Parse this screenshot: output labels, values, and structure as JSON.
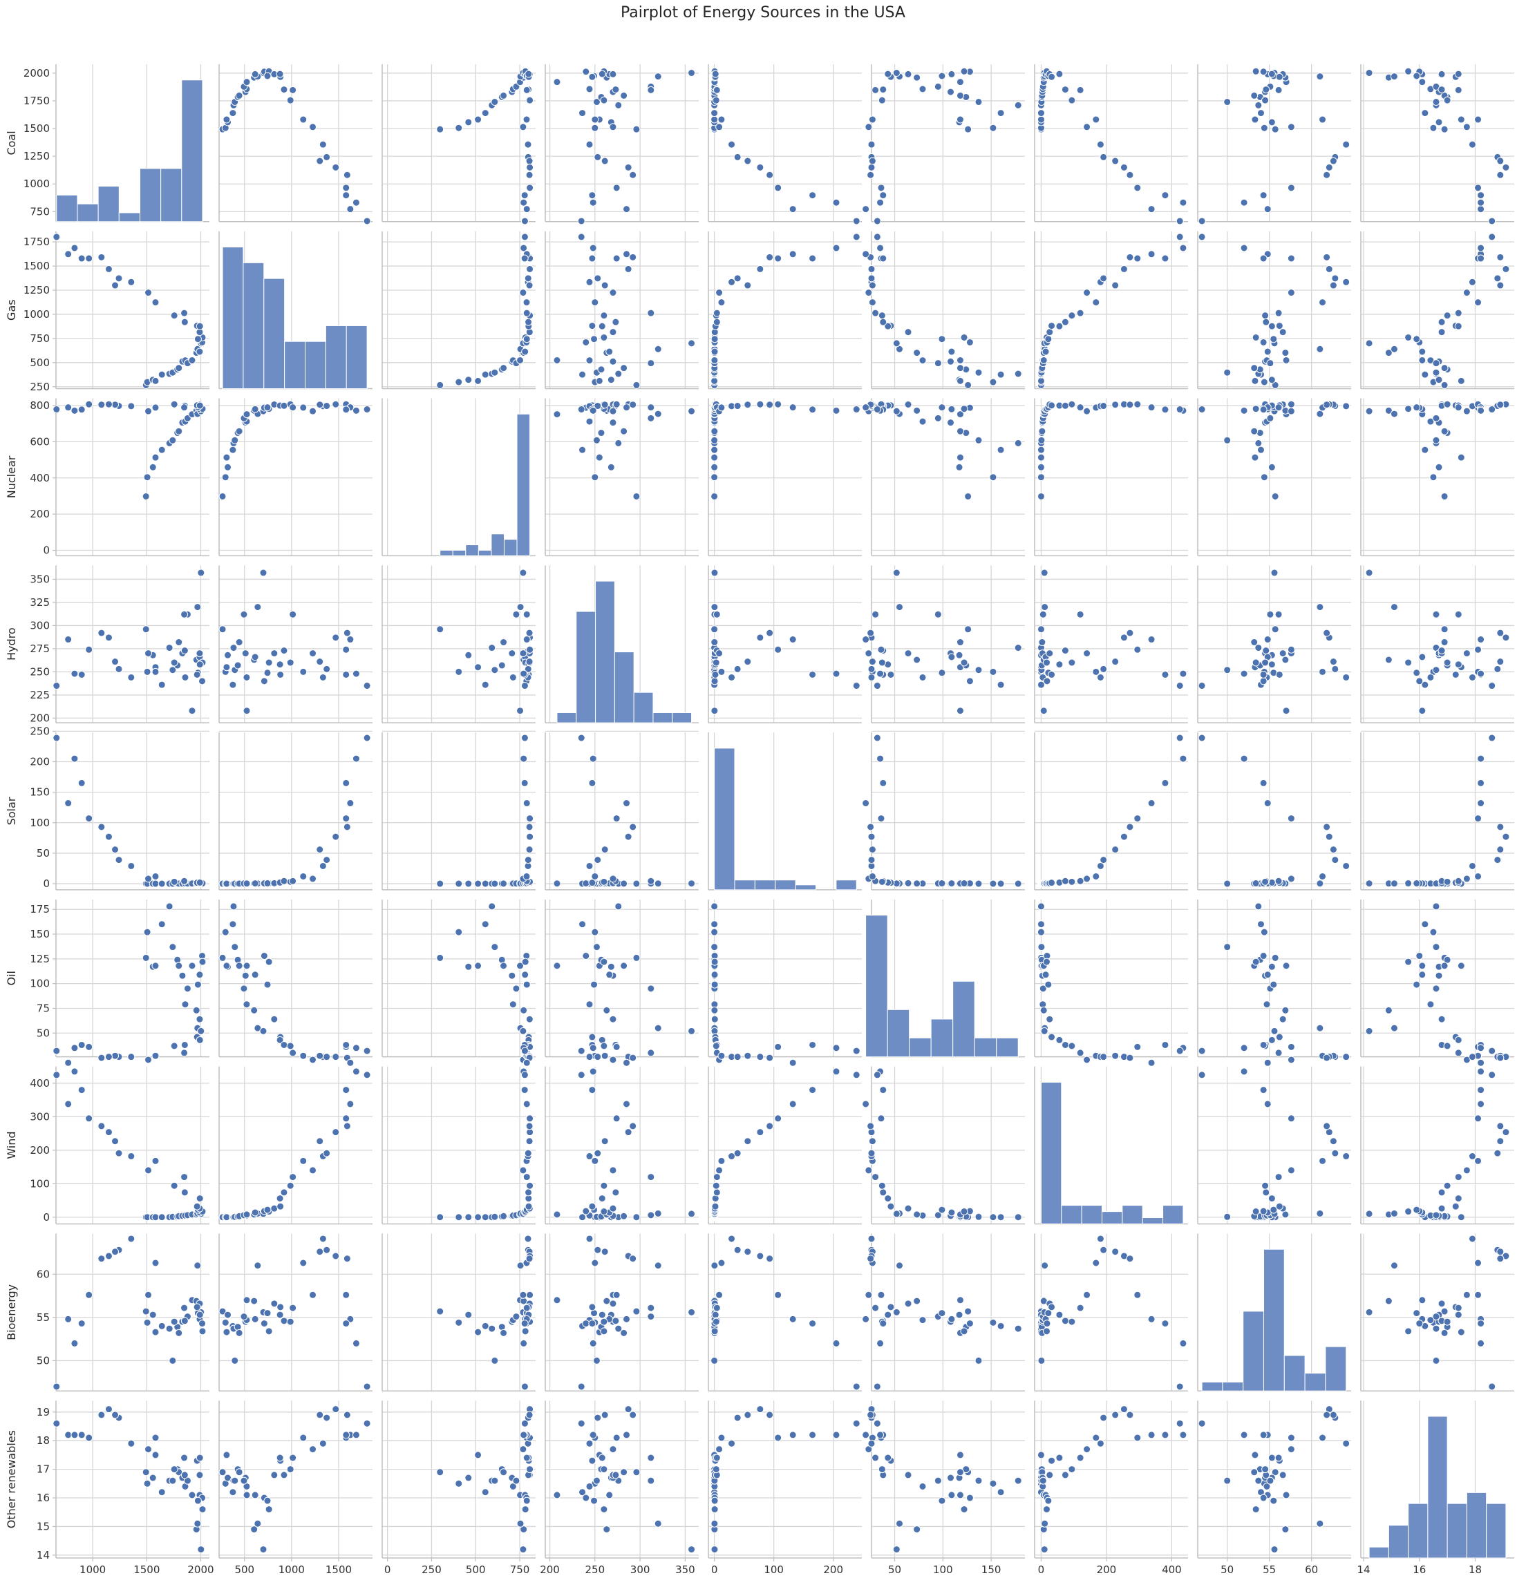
{
  "title": "Pairplot of Energy Sources in the USA",
  "chart_data": {
    "type": "scatter",
    "title": "Pairplot of Energy Sources in the USA",
    "variables": [
      "Coal",
      "Gas",
      "Nuclear",
      "Hydro",
      "Solar",
      "Oil",
      "Wind",
      "Bioenergy",
      "Other renewables"
    ],
    "ranges": {
      "Coal": [
        660,
        2080
      ],
      "Gas": [
        230,
        1860
      ],
      "Nuclear": [
        -30,
        840
      ],
      "Hydro": [
        195,
        365
      ],
      "Solar": [
        -10,
        248
      ],
      "Oil": [
        26,
        185
      ],
      "Wind": [
        -20,
        450
      ],
      "Bioenergy": [
        46.5,
        64.7
      ],
      "Other renewables": [
        13.9,
        19.4
      ]
    },
    "ticks": {
      "Coal": [
        1000,
        1500,
        2000
      ],
      "Gas": [
        500,
        1000,
        1500
      ],
      "Nuclear": [
        0,
        250,
        500,
        750
      ],
      "Hydro": [
        200,
        250,
        300,
        350
      ],
      "Solar": [
        0,
        100,
        200
      ],
      "Oil": [
        50,
        100,
        150
      ],
      "Wind": [
        0,
        200,
        400
      ],
      "Bioenergy": [
        50,
        55,
        60
      ],
      "Other renewables": [
        14,
        16,
        18
      ]
    },
    "row_ticks": {
      "Coal": [
        "750",
        "1000",
        "1250",
        "1500",
        "1750",
        "2000"
      ],
      "Gas": [
        "250",
        "500",
        "750",
        "1000",
        "1250",
        "1500",
        "1750"
      ],
      "Nuclear": [
        "0",
        "200",
        "400",
        "600",
        "800"
      ],
      "Hydro": [
        "200",
        "225",
        "250",
        "275",
        "300",
        "325",
        "350"
      ],
      "Solar": [
        "0",
        "50",
        "100",
        "150",
        "200",
        "250"
      ],
      "Oil": [
        "50",
        "75",
        "100",
        "125",
        "150",
        "175"
      ],
      "Wind": [
        "0",
        "100",
        "200",
        "300",
        "400"
      ],
      "Bioenergy": [
        "50",
        "55",
        "60"
      ],
      "Other renewables": [
        "14",
        "15",
        "16",
        "17",
        "18",
        "19"
      ]
    },
    "records": [
      {
        "Coal": 1493,
        "Gas": 267,
        "Nuclear": 298,
        "Hydro": 296,
        "Solar": 0.0,
        "Oil": 126,
        "Wind": 0.0,
        "Bioenergy": 55.7,
        "Other renewables": 16.9
      },
      {
        "Coal": 1505,
        "Gas": 298,
        "Nuclear": 404,
        "Hydro": 250,
        "Solar": 0.0,
        "Oil": 152,
        "Wind": 0.0,
        "Bioenergy": 54.4,
        "Other renewables": 16.5
      },
      {
        "Coal": 1557,
        "Gas": 322,
        "Nuclear": 459,
        "Hydro": 268,
        "Solar": 0.0,
        "Oil": 117,
        "Wind": 0.0,
        "Bioenergy": 55.3,
        "Other renewables": 16.7
      },
      {
        "Coal": 1581,
        "Gas": 310,
        "Nuclear": 513,
        "Hydro": 255,
        "Solar": 0.0,
        "Oil": 118,
        "Wind": 0.0,
        "Bioenergy": 53.3,
        "Other renewables": 17.5
      },
      {
        "Coal": 1640,
        "Gas": 376,
        "Nuclear": 555,
        "Hydro": 236,
        "Solar": 0.0,
        "Oil": 160,
        "Wind": 0.0,
        "Bioenergy": 54.0,
        "Other renewables": 16.2
      },
      {
        "Coal": 1710,
        "Gas": 384,
        "Nuclear": 592,
        "Hydro": 276,
        "Solar": 0.0,
        "Oil": 178,
        "Wind": 0.0,
        "Bioenergy": 53.7,
        "Other renewables": 16.6
      },
      {
        "Coal": 1740,
        "Gas": 397,
        "Nuclear": 608,
        "Hydro": 252,
        "Solar": 0.0,
        "Oil": 137,
        "Wind": 1.0,
        "Bioenergy": 50.0,
        "Other renewables": 16.6
      },
      {
        "Coal": 1784,
        "Gas": 429,
        "Nuclear": 649,
        "Hydro": 257,
        "Solar": 0.2,
        "Oil": 124,
        "Wind": 2.0,
        "Bioenergy": 53.9,
        "Other renewables": 17.0
      },
      {
        "Coal": 1797,
        "Gas": 444,
        "Nuclear": 658,
        "Hydro": 282,
        "Solar": 0.2,
        "Oil": 118,
        "Wind": 3.0,
        "Bioenergy": 53.2,
        "Other renewables": 16.9
      },
      {
        "Coal": 1830,
        "Gas": 511,
        "Nuclear": 706,
        "Hydro": 270,
        "Solar": 0.2,
        "Oil": 108,
        "Wind": 4.0,
        "Bioenergy": 54.5,
        "Other renewables": 16.7
      },
      {
        "Coal": 1856,
        "Gas": 523,
        "Nuclear": 712,
        "Hydro": 244,
        "Solar": 0.3,
        "Oil": 79,
        "Wind": 5.0,
        "Bioenergy": 54.7,
        "Other renewables": 16.4
      },
      {
        "Coal": 1878,
        "Gas": 494,
        "Nuclear": 730,
        "Hydro": 312,
        "Solar": 0.3,
        "Oil": 95,
        "Wind": 6.0,
        "Bioenergy": 55.1,
        "Other renewables": 16.6
      },
      {
        "Coal": 1920,
        "Gas": 524,
        "Nuclear": 752,
        "Hydro": 208,
        "Solar": 0.3,
        "Oil": 118,
        "Wind": 8.0,
        "Bioenergy": 57.0,
        "Other renewables": 16.1
      },
      {
        "Coal": 1960,
        "Gas": 602,
        "Nuclear": 772,
        "Hydro": 263,
        "Solar": 0.3,
        "Oil": 73,
        "Wind": 8.0,
        "Bioenergy": 56.9,
        "Other renewables": 14.9
      },
      {
        "Coal": 1970,
        "Gas": 640,
        "Nuclear": 754,
        "Hydro": 320,
        "Solar": 0.3,
        "Oil": 55,
        "Wind": 11.0,
        "Bioenergy": 61.0,
        "Other renewables": 15.1
      },
      {
        "Coal": 2002,
        "Gas": 700,
        "Nuclear": 769,
        "Hydro": 357,
        "Solar": 0.4,
        "Oil": 52,
        "Wind": 10.0,
        "Bioenergy": 55.6,
        "Other renewables": 14.2
      },
      {
        "Coal": 1990,
        "Gas": 613,
        "Nuclear": 780,
        "Hydro": 266,
        "Solar": 0.5,
        "Oil": 109,
        "Wind": 14.0,
        "Bioenergy": 54.8,
        "Other renewables": 16.1
      },
      {
        "Coal": 2013,
        "Gas": 710,
        "Nuclear": 788,
        "Hydro": 240,
        "Solar": 0.5,
        "Oil": 128,
        "Wind": 18.0,
        "Bioenergy": 54.3,
        "Other renewables": 16.0
      },
      {
        "Coal": 2016,
        "Gas": 760,
        "Nuclear": 782,
        "Hydro": 260,
        "Solar": 0.6,
        "Oil": 122,
        "Wind": 17.0,
        "Bioenergy": 53.4,
        "Other renewables": 15.6
      },
      {
        "Coal": 1974,
        "Gas": 744,
        "Nuclear": 790,
        "Hydro": 249,
        "Solar": 0.6,
        "Oil": 99,
        "Wind": 22.0,
        "Bioenergy": 55.5,
        "Other renewables": 15.9
      },
      {
        "Coal": 1990,
        "Gas": 816,
        "Nuclear": 806,
        "Hydro": 270,
        "Solar": 0.8,
        "Oil": 64,
        "Wind": 26.0,
        "Bioenergy": 56.6,
        "Other renewables": 16.8
      },
      {
        "Coal": 1966,
        "Gas": 881,
        "Nuclear": 801,
        "Hydro": 247,
        "Solar": 1.6,
        "Oil": 46,
        "Wind": 32.0,
        "Bioenergy": 56.2,
        "Other renewables": 17.3
      },
      {
        "Coal": 1992,
        "Gas": 877,
        "Nuclear": 800,
        "Hydro": 258,
        "Solar": 1.9,
        "Oil": 43,
        "Wind": 56.0,
        "Bioenergy": 55.3,
        "Other renewables": 17.4
      },
      {
        "Coal": 1852,
        "Gas": 920,
        "Nuclear": 799,
        "Hydro": 273,
        "Solar": 4.3,
        "Oil": 38,
        "Wind": 74.0,
        "Bioenergy": 54.6,
        "Other renewables": 16.8
      },
      {
        "Coal": 1755,
        "Gas": 988,
        "Nuclear": 807,
        "Hydro": 260,
        "Solar": 3.1,
        "Oil": 37,
        "Wind": 94.0,
        "Bioenergy": 54.5,
        "Other renewables": 17.0
      },
      {
        "Coal": 1847,
        "Gas": 1013,
        "Nuclear": 790,
        "Hydro": 312,
        "Solar": 4.3,
        "Oil": 30,
        "Wind": 120.0,
        "Bioenergy": 56.1,
        "Other renewables": 17.4
      },
      {
        "Coal": 1514,
        "Gas": 1225,
        "Nuclear": 769,
        "Hydro": 270,
        "Solar": 8.1,
        "Oil": 23,
        "Wind": 140.0,
        "Bioenergy": 57.6,
        "Other renewables": 17.7
      },
      {
        "Coal": 1581,
        "Gas": 1124,
        "Nuclear": 789,
        "Hydro": 250,
        "Solar": 12.0,
        "Oil": 27,
        "Wind": 168.0,
        "Bioenergy": 61.3,
        "Other renewables": 18.1
      },
      {
        "Coal": 1356,
        "Gas": 1334,
        "Nuclear": 797,
        "Hydro": 244,
        "Solar": 29.0,
        "Oil": 26,
        "Wind": 182.0,
        "Bioenergy": 64.1,
        "Other renewables": 17.9
      },
      {
        "Coal": 1242,
        "Gas": 1373,
        "Nuclear": 798,
        "Hydro": 253,
        "Solar": 39.0,
        "Oil": 26,
        "Wind": 191.0,
        "Bioenergy": 62.8,
        "Other renewables": 18.8
      },
      {
        "Coal": 1207,
        "Gas": 1300,
        "Nuclear": 805,
        "Hydro": 261,
        "Solar": 56.0,
        "Oil": 27,
        "Wind": 227.0,
        "Bioenergy": 62.6,
        "Other renewables": 18.9
      },
      {
        "Coal": 1149,
        "Gas": 1469,
        "Nuclear": 807,
        "Hydro": 287,
        "Solar": 77.0,
        "Oil": 26,
        "Wind": 254.0,
        "Bioenergy": 62.1,
        "Other renewables": 19.1
      },
      {
        "Coal": 1081,
        "Gas": 1591,
        "Nuclear": 805,
        "Hydro": 292,
        "Solar": 93.0,
        "Oil": 25,
        "Wind": 272.0,
        "Bioenergy": 61.8,
        "Other renewables": 18.9
      },
      {
        "Coal": 965,
        "Gas": 1579,
        "Nuclear": 807,
        "Hydro": 274,
        "Solar": 107.0,
        "Oil": 36,
        "Wind": 295.0,
        "Bioenergy": 57.6,
        "Other renewables": 18.1
      },
      {
        "Coal": 773,
        "Gas": 1624,
        "Nuclear": 790,
        "Hydro": 285,
        "Solar": 132.0,
        "Oil": 20,
        "Wind": 338.0,
        "Bioenergy": 54.8,
        "Other renewables": 18.2
      },
      {
        "Coal": 898,
        "Gas": 1579,
        "Nuclear": 778,
        "Hydro": 247,
        "Solar": 165.0,
        "Oil": 38,
        "Wind": 380.0,
        "Bioenergy": 54.3,
        "Other renewables": 18.2
      },
      {
        "Coal": 832,
        "Gas": 1687,
        "Nuclear": 772,
        "Hydro": 248,
        "Solar": 205.0,
        "Oil": 35,
        "Wind": 435.0,
        "Bioenergy": 52.0,
        "Other renewables": 18.2
      },
      {
        "Coal": 665,
        "Gas": 1802,
        "Nuclear": 779,
        "Hydro": 235,
        "Solar": 239.0,
        "Oil": 32,
        "Wind": 425.0,
        "Bioenergy": 47.0,
        "Other renewables": 18.6
      }
    ]
  },
  "colors": {
    "marker": "#4c72b0",
    "marker_edge": "#ffffff",
    "hist_fill": "#6e8dc5",
    "hist_edge": "#ffffff",
    "grid": "#d6d6d6",
    "spine": "#bfbfbf",
    "text": "#262626"
  }
}
